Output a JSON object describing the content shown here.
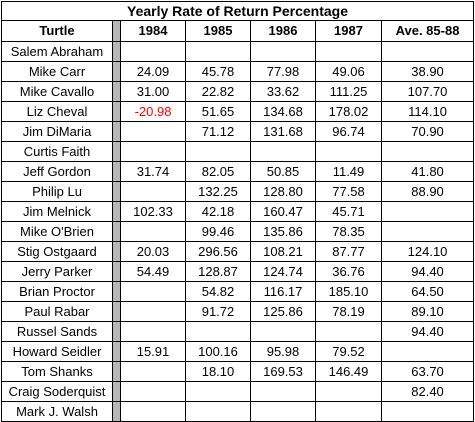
{
  "table": {
    "title": "Yearly Rate of Return Percentage",
    "headers": [
      "Turtle",
      "1984",
      "1985",
      "1986",
      "1987",
      "Ave. 85-88"
    ],
    "rows": [
      {
        "name": "Salem Abraham",
        "y1984": "",
        "y1985": "",
        "y1986": "",
        "y1987": "",
        "avg": ""
      },
      {
        "name": "Mike Carr",
        "y1984": "24.09",
        "y1985": "45.78",
        "y1986": "77.98",
        "y1987": "49.06",
        "avg": "38.90"
      },
      {
        "name": "Mike Cavallo",
        "y1984": "31.00",
        "y1985": "22.82",
        "y1986": "33.62",
        "y1987": "111.25",
        "avg": "107.70"
      },
      {
        "name": "Liz Cheval",
        "y1984": "-20.98",
        "y1985": "51.65",
        "y1986": "134.68",
        "y1987": "178.02",
        "avg": "114.10"
      },
      {
        "name": "Jim DiMaria",
        "y1984": "",
        "y1985": "71.12",
        "y1986": "131.68",
        "y1987": "96.74",
        "avg": "70.90"
      },
      {
        "name": "Curtis Faith",
        "y1984": "",
        "y1985": "",
        "y1986": "",
        "y1987": "",
        "avg": ""
      },
      {
        "name": "Jeff Gordon",
        "y1984": "31.74",
        "y1985": "82.05",
        "y1986": "50.85",
        "y1987": "11.49",
        "avg": "41.80"
      },
      {
        "name": "Philip Lu",
        "y1984": "",
        "y1985": "132.25",
        "y1986": "128.80",
        "y1987": "77.58",
        "avg": "88.90"
      },
      {
        "name": "Jim Melnick",
        "y1984": "102.33",
        "y1985": "42.18",
        "y1986": "160.47",
        "y1987": "45.71",
        "avg": ""
      },
      {
        "name": "Mike O'Brien",
        "y1984": "",
        "y1985": "99.46",
        "y1986": "135.86",
        "y1987": "78.35",
        "avg": ""
      },
      {
        "name": "Stig Ostgaard",
        "y1984": "20.03",
        "y1985": "296.56",
        "y1986": "108.21",
        "y1987": "87.77",
        "avg": "124.10"
      },
      {
        "name": "Jerry Parker",
        "y1984": "54.49",
        "y1985": "128.87",
        "y1986": "124.74",
        "y1987": "36.76",
        "avg": "94.40"
      },
      {
        "name": "Brian Proctor",
        "y1984": "",
        "y1985": "54.82",
        "y1986": "116.17",
        "y1987": "185.10",
        "avg": "64.50"
      },
      {
        "name": "Paul Rabar",
        "y1984": "",
        "y1985": "91.72",
        "y1986": "125.86",
        "y1987": "78.19",
        "avg": "89.10"
      },
      {
        "name": "Russel Sands",
        "y1984": "",
        "y1985": "",
        "y1986": "",
        "y1987": "",
        "avg": "94.40"
      },
      {
        "name": "Howard Seidler",
        "y1984": "15.91",
        "y1985": "100.16",
        "y1986": "95.98",
        "y1987": "79.52",
        "avg": ""
      },
      {
        "name": "Tom Shanks",
        "y1984": "",
        "y1985": "18.10",
        "y1986": "169.53",
        "y1987": "146.49",
        "avg": "63.70"
      },
      {
        "name": "Craig Soderquist",
        "y1984": "",
        "y1985": "",
        "y1986": "",
        "y1987": "",
        "avg": "82.40"
      },
      {
        "name": "Mark J. Walsh",
        "y1984": "",
        "y1985": "",
        "y1986": "",
        "y1987": "",
        "avg": ""
      }
    ]
  },
  "colors": {
    "negative": "#ff0000",
    "separator": "#b7b7b7"
  }
}
